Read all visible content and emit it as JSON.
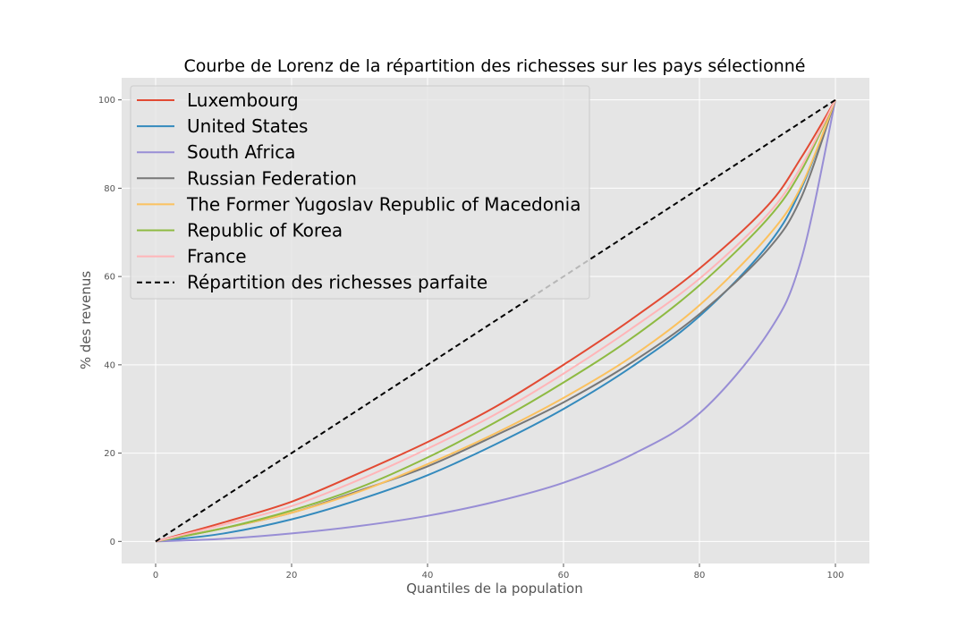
{
  "chart_data": {
    "type": "line",
    "title": "Courbe de Lorenz de la répartition des richesses sur les pays sélectionné",
    "xlabel": "Quantiles de la population",
    "ylabel": "% des revenus",
    "xlim": [
      -5,
      105
    ],
    "ylim": [
      -5,
      105
    ],
    "x_ticks": [
      0,
      20,
      40,
      60,
      80,
      100
    ],
    "y_ticks": [
      0,
      20,
      40,
      60,
      80,
      100
    ],
    "grid": true,
    "background": "#e5e5e5",
    "legend_position": "upper-left",
    "x": [
      0,
      10,
      20,
      30,
      40,
      50,
      60,
      70,
      80,
      90,
      95,
      100
    ],
    "series": [
      {
        "name": "Luxembourg",
        "color": "#e24a33",
        "dash": "solid",
        "values": [
          0,
          4.3,
          9.0,
          15.5,
          22.5,
          30.5,
          40.0,
          50.3,
          61.8,
          76.0,
          87.0,
          100
        ]
      },
      {
        "name": "United States",
        "color": "#348abd",
        "dash": "solid",
        "values": [
          0,
          1.8,
          5.0,
          9.5,
          15.0,
          22.0,
          30.0,
          39.5,
          51.0,
          67.0,
          80.0,
          100
        ]
      },
      {
        "name": "South Africa",
        "color": "#988ed5",
        "dash": "solid",
        "values": [
          0,
          0.6,
          1.8,
          3.5,
          5.8,
          9.0,
          13.3,
          19.6,
          29.0,
          47.0,
          64.0,
          100
        ]
      },
      {
        "name": "Russian Federation",
        "color": "#777777",
        "dash": "solid",
        "values": [
          0,
          3.0,
          6.5,
          11.5,
          17.0,
          24.0,
          31.5,
          40.5,
          51.5,
          66.0,
          78.0,
          100
        ]
      },
      {
        "name": "The Former Yugoslav Republic of Macedonia",
        "color": "#fbc15e",
        "dash": "solid",
        "values": [
          0,
          3.0,
          6.5,
          11.3,
          17.5,
          24.5,
          32.5,
          41.8,
          53.5,
          69.0,
          80.5,
          100
        ]
      },
      {
        "name": "Republic of Korea",
        "color": "#8eba42",
        "dash": "solid",
        "values": [
          0,
          3.0,
          7.0,
          12.2,
          19.0,
          27.0,
          36.0,
          46.0,
          58.0,
          73.0,
          84.0,
          100
        ]
      },
      {
        "name": "France",
        "color": "#ffb5b8",
        "dash": "solid",
        "values": [
          0,
          3.8,
          8.0,
          14.0,
          21.0,
          28.8,
          38.0,
          48.2,
          59.5,
          74.0,
          85.0,
          100
        ]
      },
      {
        "name": "Répartition des richesses parfaite",
        "color": "#000000",
        "dash": "dashed",
        "values": [
          0,
          10,
          20,
          30,
          40,
          50,
          60,
          70,
          80,
          90,
          95,
          100
        ]
      }
    ]
  }
}
